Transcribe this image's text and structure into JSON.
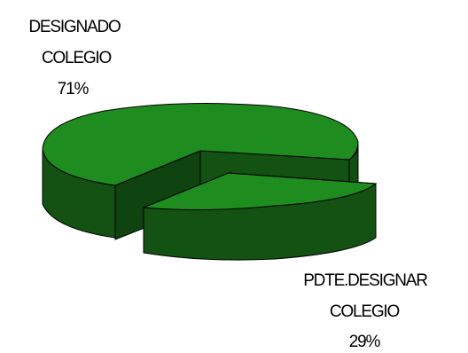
{
  "chart_data": {
    "type": "pie",
    "style": "3d-exploded",
    "slices": [
      {
        "label_lines": [
          "DESIGNADO",
          "COLEGIO"
        ],
        "percent_label": "71%",
        "value": 71,
        "color": "#1e8c1e",
        "exploded": false
      },
      {
        "label_lines": [
          "PDTE.DESIGNAR",
          "COLEGIO"
        ],
        "percent_label": "29%",
        "value": 29,
        "color": "#1e8c1e",
        "exploded": true
      }
    ],
    "side_color": "#145214",
    "edge_color": "#000000",
    "legend": false
  }
}
